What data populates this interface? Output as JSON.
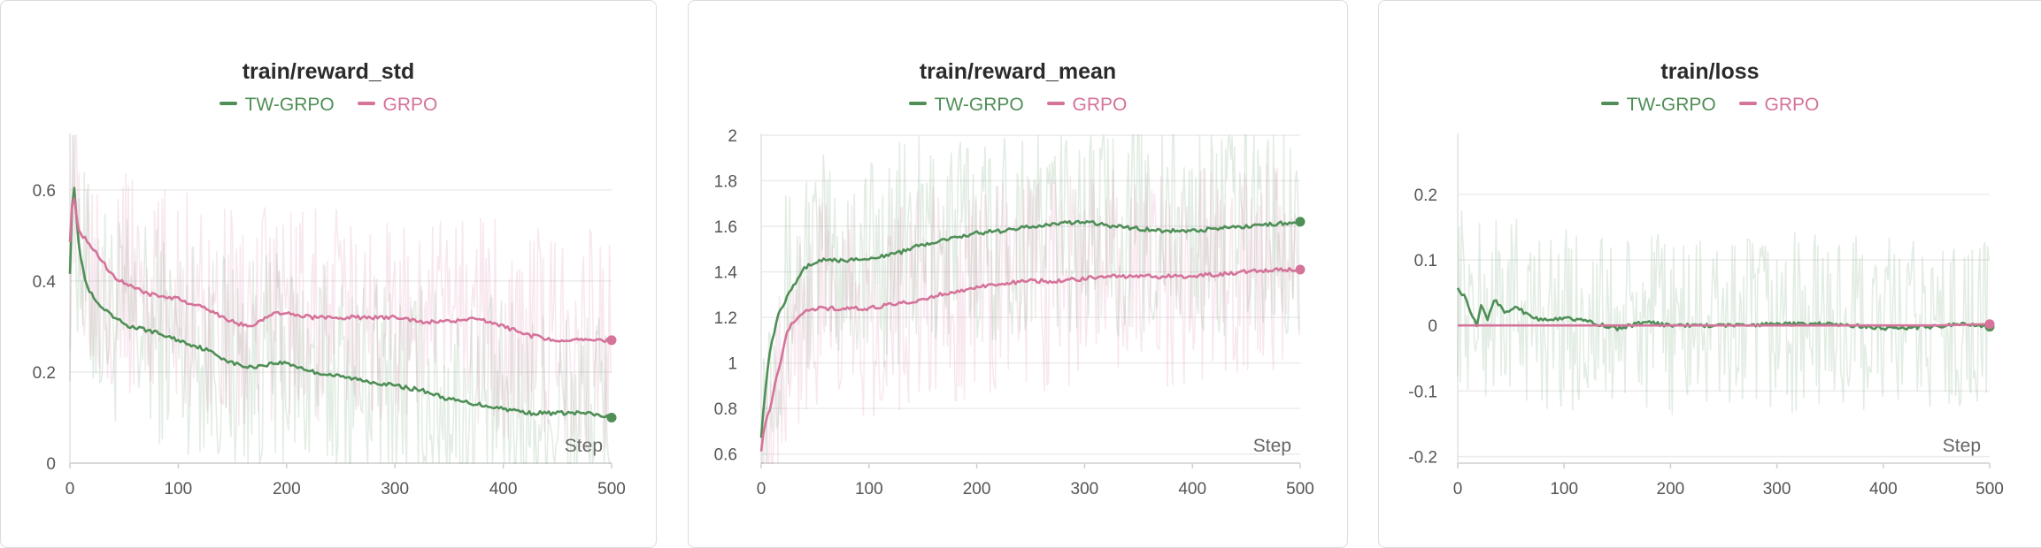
{
  "chart_data": [
    {
      "type": "line",
      "title": "train/reward_std",
      "xlabel": "Step",
      "ylabel": "",
      "xlim": [
        0,
        500
      ],
      "ylim": [
        0,
        0.72
      ],
      "x_ticks": [
        0,
        100,
        200,
        300,
        400,
        500
      ],
      "y_ticks": [
        0,
        0.2,
        0.4,
        0.6
      ],
      "grid": true,
      "legend_position": "top-center",
      "series": [
        {
          "name": "TW-GRPO",
          "color": "#4f8f57",
          "x": [
            0,
            3,
            8,
            15,
            25,
            40,
            55,
            75,
            100,
            125,
            150,
            165,
            190,
            200,
            225,
            250,
            275,
            300,
            325,
            350,
            375,
            400,
            425,
            450,
            475,
            500
          ],
          "y": [
            0.42,
            0.64,
            0.48,
            0.39,
            0.35,
            0.32,
            0.3,
            0.29,
            0.27,
            0.25,
            0.22,
            0.21,
            0.22,
            0.22,
            0.2,
            0.19,
            0.18,
            0.17,
            0.16,
            0.14,
            0.13,
            0.12,
            0.11,
            0.11,
            0.11,
            0.1
          ]
        },
        {
          "name": "GRPO",
          "color": "#d5739a",
          "x": [
            0,
            3,
            8,
            15,
            25,
            40,
            55,
            75,
            100,
            125,
            150,
            165,
            190,
            200,
            225,
            250,
            275,
            300,
            325,
            350,
            375,
            400,
            425,
            450,
            475,
            500
          ],
          "y": [
            0.49,
            0.6,
            0.51,
            0.49,
            0.46,
            0.41,
            0.39,
            0.37,
            0.36,
            0.34,
            0.31,
            0.3,
            0.33,
            0.33,
            0.32,
            0.32,
            0.32,
            0.32,
            0.31,
            0.31,
            0.32,
            0.3,
            0.28,
            0.27,
            0.27,
            0.27
          ]
        }
      ]
    },
    {
      "type": "line",
      "title": "train/reward_mean",
      "xlabel": "Step",
      "ylabel": "",
      "xlim": [
        0,
        500
      ],
      "ylim": [
        0.56,
        2.0
      ],
      "x_ticks": [
        0,
        100,
        200,
        300,
        400,
        500
      ],
      "y_ticks": [
        0.6,
        0.8,
        1,
        1.2,
        1.4,
        1.6,
        1.8,
        2
      ],
      "grid": true,
      "legend_position": "top-center",
      "series": [
        {
          "name": "TW-GRPO",
          "color": "#4f8f57",
          "x": [
            0,
            3,
            8,
            15,
            25,
            40,
            55,
            75,
            100,
            125,
            150,
            175,
            200,
            225,
            250,
            275,
            300,
            325,
            350,
            375,
            400,
            425,
            450,
            475,
            500
          ],
          "y": [
            0.68,
            0.85,
            1.05,
            1.2,
            1.3,
            1.42,
            1.45,
            1.45,
            1.46,
            1.48,
            1.52,
            1.55,
            1.57,
            1.58,
            1.6,
            1.61,
            1.62,
            1.6,
            1.59,
            1.58,
            1.58,
            1.59,
            1.6,
            1.61,
            1.62
          ]
        },
        {
          "name": "GRPO",
          "color": "#d5739a",
          "x": [
            0,
            3,
            8,
            15,
            25,
            40,
            55,
            75,
            100,
            125,
            150,
            175,
            200,
            225,
            250,
            275,
            300,
            325,
            350,
            375,
            400,
            425,
            450,
            475,
            500
          ],
          "y": [
            0.62,
            0.72,
            0.8,
            0.95,
            1.15,
            1.23,
            1.24,
            1.24,
            1.24,
            1.26,
            1.28,
            1.31,
            1.33,
            1.35,
            1.36,
            1.36,
            1.37,
            1.38,
            1.38,
            1.38,
            1.38,
            1.39,
            1.4,
            1.41,
            1.41
          ]
        }
      ]
    },
    {
      "type": "line",
      "title": "train/loss",
      "xlabel": "Step",
      "ylabel": "",
      "xlim": [
        0,
        500
      ],
      "ylim": [
        -0.21,
        0.29
      ],
      "x_ticks": [
        0,
        100,
        200,
        300,
        400,
        500
      ],
      "y_ticks": [
        -0.2,
        -0.1,
        0,
        0.1,
        0.2
      ],
      "grid": true,
      "legend_position": "top-center",
      "series": [
        {
          "name": "TW-GRPO",
          "color": "#4f8f57",
          "x": [
            0,
            3,
            8,
            12,
            18,
            22,
            28,
            35,
            45,
            55,
            70,
            85,
            100,
            110,
            125,
            150,
            175,
            200,
            250,
            300,
            350,
            400,
            450,
            475,
            500
          ],
          "y": [
            0.06,
            0.05,
            0.04,
            0.02,
            0.0,
            0.03,
            0.01,
            0.04,
            0.02,
            0.03,
            0.01,
            0.01,
            0.01,
            0.01,
            0.005,
            -0.005,
            0.005,
            0.0,
            0.0,
            0.002,
            0.003,
            -0.004,
            -0.002,
            0.002,
            -0.002
          ]
        },
        {
          "name": "GRPO",
          "color": "#d5739a",
          "x": [
            0,
            50,
            100,
            150,
            200,
            250,
            300,
            350,
            400,
            450,
            500
          ],
          "y": [
            0,
            0,
            0,
            0,
            0,
            0,
            0,
            0,
            0,
            0,
            0.002
          ]
        }
      ]
    }
  ]
}
